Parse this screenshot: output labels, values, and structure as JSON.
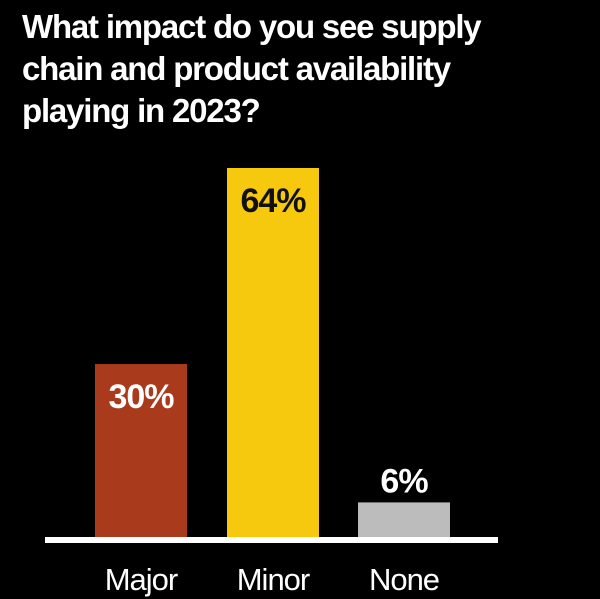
{
  "title": "What impact do you see supply\n chain and product availability\nplaying in 2023?",
  "colors": {
    "background": "#000000",
    "text": "#ffffff",
    "baseline": "#ffffff",
    "label_dark": "#111111"
  },
  "chart_data": {
    "type": "bar",
    "title": "What impact do you see supply\n chain and product availability\nplaying in 2023?",
    "categories": [
      "Major",
      "Minor",
      "None"
    ],
    "values": [
      30,
      64,
      6
    ],
    "value_labels": [
      "30%",
      "64%",
      "6%"
    ],
    "bar_colors": [
      "#a93a1c",
      "#f6c90e",
      "#bcbcbc"
    ],
    "label_position": [
      "inside-top",
      "inside-top",
      "above"
    ],
    "label_colors": [
      "#ffffff",
      "#111111",
      "#ffffff"
    ],
    "unit": "%",
    "ylim": [
      0,
      64
    ],
    "grid": false,
    "xlabel": "",
    "ylabel": ""
  }
}
